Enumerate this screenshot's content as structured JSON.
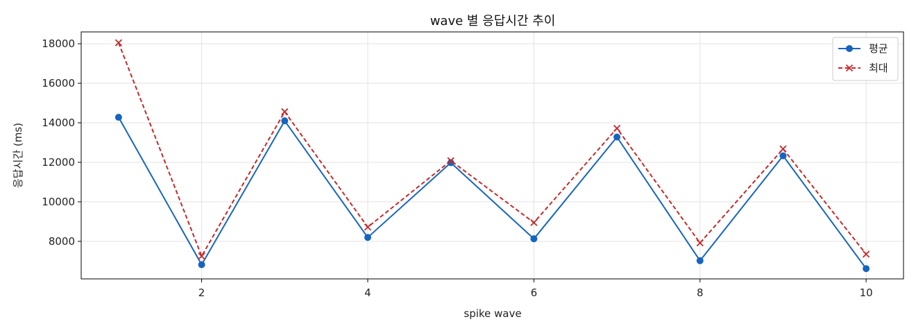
{
  "chart_data": {
    "type": "line",
    "title": "wave 별 응답시간 추이",
    "xlabel": "spike wave",
    "ylabel": "응답시간 (ms)",
    "x": [
      1,
      2,
      3,
      4,
      5,
      6,
      7,
      8,
      9,
      10
    ],
    "xticks": [
      2,
      4,
      6,
      8,
      10
    ],
    "yticks": [
      8000,
      10000,
      12000,
      14000,
      16000,
      18000
    ],
    "xlim": [
      0.55,
      10.45
    ],
    "ylim": [
      6100,
      18600
    ],
    "grid": true,
    "legend_position": "top-right",
    "series": [
      {
        "name": "평균",
        "color": "#1565c0",
        "marker": "circle",
        "line_style": "solid",
        "values": [
          14280,
          6820,
          14100,
          8200,
          11980,
          8130,
          13280,
          7020,
          12330,
          6620
        ]
      },
      {
        "name": "최대",
        "color": "#c62828",
        "marker": "x",
        "line_style": "dashed",
        "values": [
          18050,
          7250,
          14560,
          8720,
          12080,
          8950,
          13720,
          7920,
          12680,
          7350
        ]
      }
    ]
  }
}
